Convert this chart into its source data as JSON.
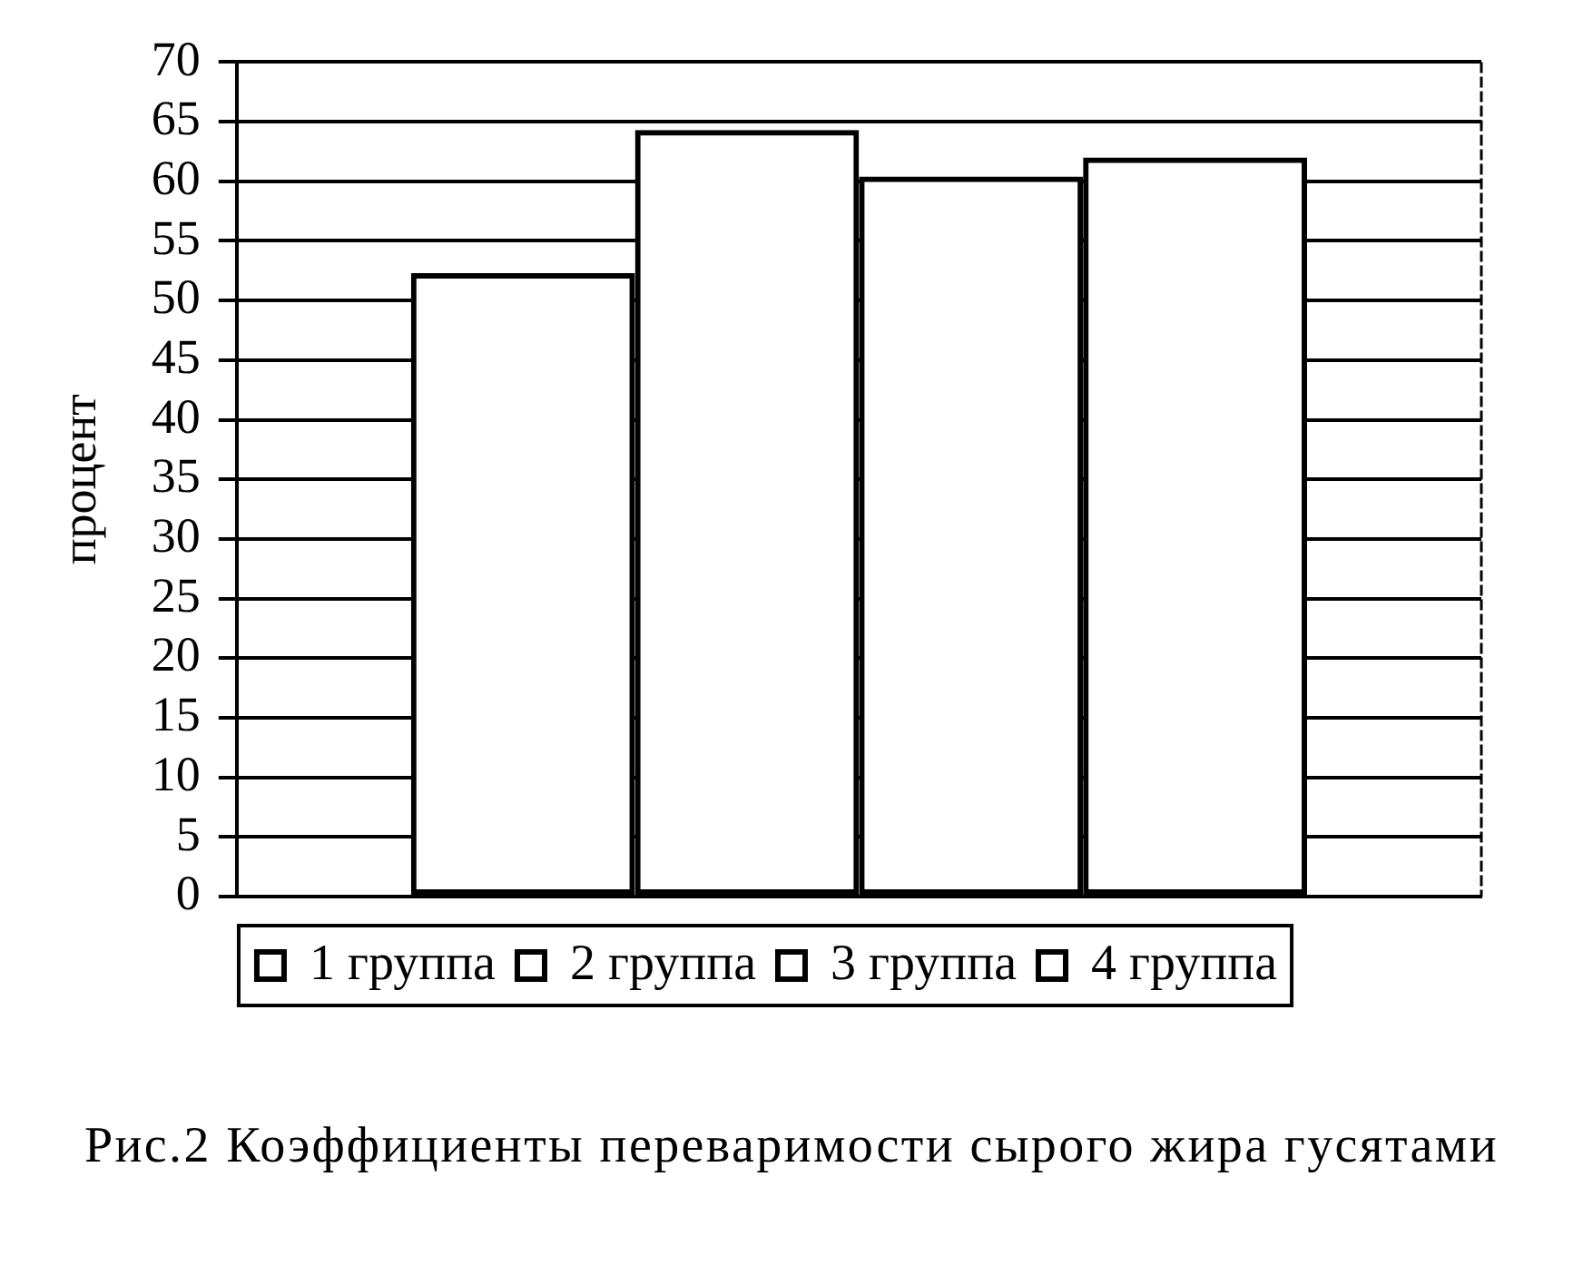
{
  "chart_data": {
    "type": "bar",
    "categories": [
      null
    ],
    "series": [
      {
        "name": "1 группа",
        "color": "#000000",
        "values": [
          52.3
        ]
      },
      {
        "name": "2 группа",
        "color": "#000000",
        "values": [
          64.3
        ]
      },
      {
        "name": "3 группа",
        "color": "#000000",
        "values": [
          60.4
        ]
      },
      {
        "name": "4 группа",
        "color": "#000000",
        "values": [
          62.0
        ]
      }
    ],
    "ylabel": "процент",
    "ylim": [
      0,
      70
    ],
    "yticks": [
      0,
      5,
      10,
      15,
      20,
      25,
      30,
      35,
      40,
      45,
      50,
      55,
      60,
      65,
      70
    ],
    "grid": "y",
    "legend": "bottom",
    "tick_labels": "y",
    "annotations": [
      "Рис.2 Коэффициенты переваримости сырого жира гусятами"
    ]
  }
}
